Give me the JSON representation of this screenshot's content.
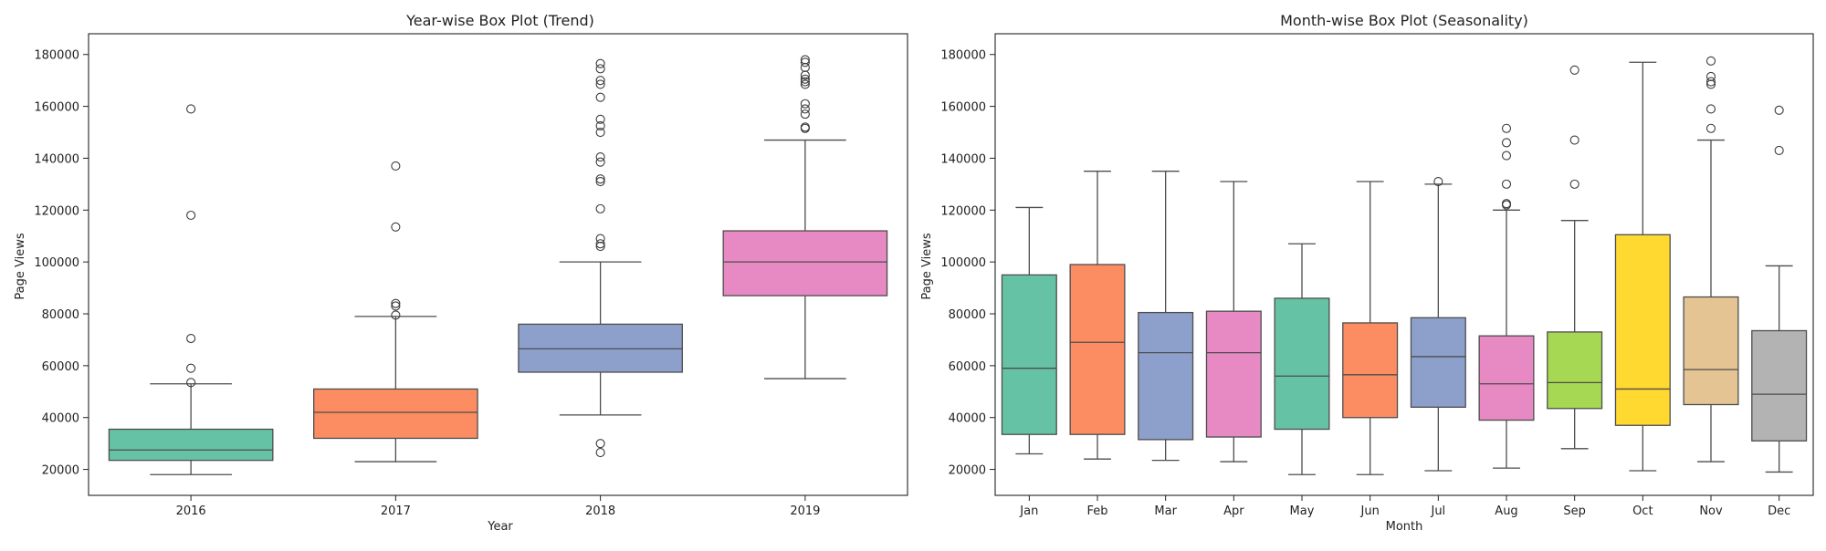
{
  "chart_data": [
    {
      "type": "box",
      "title": "Year-wise Box Plot (Trend)",
      "xlabel": "Year",
      "ylabel": "Page Views",
      "ylim": [
        10000,
        188000
      ],
      "yticks": [
        20000,
        40000,
        60000,
        80000,
        100000,
        120000,
        140000,
        160000,
        180000
      ],
      "grid": false,
      "categories": [
        "2016",
        "2017",
        "2018",
        "2019"
      ],
      "boxes": [
        {
          "category": "2016",
          "color": "#66c2a5",
          "whisker_low": 18000,
          "q1": 23500,
          "median": 27500,
          "q3": 35500,
          "whisker_high": 53000,
          "outliers": [
            53500,
            59000,
            70500,
            118000,
            159000
          ]
        },
        {
          "category": "2017",
          "color": "#fc8d62",
          "whisker_low": 23000,
          "q1": 32000,
          "median": 42000,
          "q3": 51000,
          "whisker_high": 79000,
          "outliers": [
            79500,
            83000,
            84000,
            113500,
            137000
          ]
        },
        {
          "category": "2018",
          "color": "#8da0cb",
          "whisker_low": 41000,
          "q1": 57500,
          "median": 66500,
          "q3": 76000,
          "whisker_high": 100000,
          "outliers": [
            26500,
            30000,
            106000,
            107000,
            109000,
            120500,
            131000,
            132000,
            138500,
            140500,
            150000,
            152500,
            155000,
            163500,
            168500,
            170000,
            174500,
            176500
          ]
        },
        {
          "category": "2019",
          "color": "#e78ac3",
          "whisker_low": 55000,
          "q1": 87000,
          "median": 100000,
          "q3": 112000,
          "whisker_high": 147000,
          "outliers": [
            151500,
            152000,
            157000,
            159000,
            161000,
            168500,
            169500,
            170500,
            172000,
            175000,
            177000,
            178000
          ]
        }
      ]
    },
    {
      "type": "box",
      "title": "Month-wise Box Plot (Seasonality)",
      "xlabel": "Month",
      "ylabel": "Page Views",
      "ylim": [
        10000,
        188000
      ],
      "yticks": [
        20000,
        40000,
        60000,
        80000,
        100000,
        120000,
        140000,
        160000,
        180000
      ],
      "grid": false,
      "categories": [
        "Jan",
        "Feb",
        "Mar",
        "Apr",
        "May",
        "Jun",
        "Jul",
        "Aug",
        "Sep",
        "Oct",
        "Nov",
        "Dec"
      ],
      "boxes": [
        {
          "category": "Jan",
          "color": "#66c2a5",
          "whisker_low": 26000,
          "q1": 33500,
          "median": 59000,
          "q3": 95000,
          "whisker_high": 121000,
          "outliers": []
        },
        {
          "category": "Feb",
          "color": "#fc8d62",
          "whisker_low": 24000,
          "q1": 33500,
          "median": 69000,
          "q3": 99000,
          "whisker_high": 135000,
          "outliers": []
        },
        {
          "category": "Mar",
          "color": "#8da0cb",
          "whisker_low": 23500,
          "q1": 31500,
          "median": 65000,
          "q3": 80500,
          "whisker_high": 135000,
          "outliers": []
        },
        {
          "category": "Apr",
          "color": "#e78ac3",
          "whisker_low": 23000,
          "q1": 32500,
          "median": 65000,
          "q3": 81000,
          "whisker_high": 131000,
          "outliers": []
        },
        {
          "category": "May",
          "color": "#66c2a5",
          "whisker_low": 18000,
          "q1": 35500,
          "median": 56000,
          "q3": 86000,
          "whisker_high": 107000,
          "outliers": []
        },
        {
          "category": "Jun",
          "color": "#fc8d62",
          "whisker_low": 18000,
          "q1": 40000,
          "median": 56500,
          "q3": 76500,
          "whisker_high": 131000,
          "outliers": []
        },
        {
          "category": "Jul",
          "color": "#8da0cb",
          "whisker_low": 19500,
          "q1": 44000,
          "median": 63500,
          "q3": 78500,
          "whisker_high": 130000,
          "outliers": [
            131000
          ]
        },
        {
          "category": "Aug",
          "color": "#e78ac3",
          "whisker_low": 20500,
          "q1": 39000,
          "median": 53000,
          "q3": 71500,
          "whisker_high": 120000,
          "outliers": [
            122000,
            122500,
            130000,
            141000,
            146000,
            151500
          ]
        },
        {
          "category": "Sep",
          "color": "#a6d854",
          "whisker_low": 28000,
          "q1": 43500,
          "median": 53500,
          "q3": 73000,
          "whisker_high": 116000,
          "outliers": [
            130000,
            147000,
            174000
          ]
        },
        {
          "category": "Oct",
          "color": "#ffd92f",
          "whisker_low": 19500,
          "q1": 37000,
          "median": 51000,
          "q3": 110500,
          "whisker_high": 177000,
          "outliers": []
        },
        {
          "category": "Nov",
          "color": "#e5c494",
          "whisker_low": 23000,
          "q1": 45000,
          "median": 58500,
          "q3": 86500,
          "whisker_high": 147000,
          "outliers": [
            151500,
            159000,
            168500,
            169500,
            171500,
            177500
          ]
        },
        {
          "category": "Dec",
          "color": "#b3b3b3",
          "whisker_low": 19000,
          "q1": 31000,
          "median": 49000,
          "q3": 73500,
          "whisker_high": 98500,
          "outliers": [
            143000,
            158500
          ]
        }
      ]
    }
  ]
}
